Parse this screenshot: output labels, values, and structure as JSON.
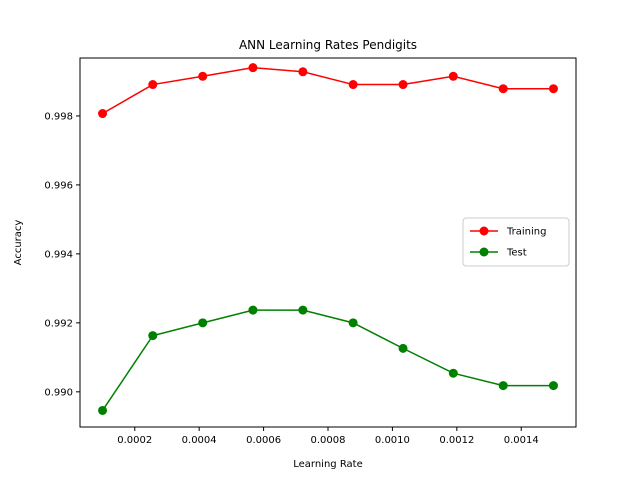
{
  "chart_data": {
    "type": "line",
    "title": "ANN Learning Rates Pendigits",
    "xlabel": "Learning Rate",
    "ylabel": "Accuracy",
    "x": [
      0.0001,
      0.000256,
      0.000411,
      0.000567,
      0.000722,
      0.000878,
      0.001033,
      0.001189,
      0.001344,
      0.0015
    ],
    "xlim": [
      3e-05,
      0.00157
    ],
    "ylim": [
      0.98898,
      0.99968
    ],
    "xticks": [
      {
        "value": 0.0002,
        "label": "0.0002"
      },
      {
        "value": 0.0004,
        "label": "0.0004"
      },
      {
        "value": 0.0006,
        "label": "0.0006"
      },
      {
        "value": 0.0008,
        "label": "0.0008"
      },
      {
        "value": 0.001,
        "label": "0.0010"
      },
      {
        "value": 0.0012,
        "label": "0.0012"
      },
      {
        "value": 0.0014,
        "label": "0.0014"
      }
    ],
    "yticks": [
      {
        "value": 0.99,
        "label": "0.990"
      },
      {
        "value": 0.992,
        "label": "0.992"
      },
      {
        "value": 0.994,
        "label": "0.994"
      },
      {
        "value": 0.996,
        "label": "0.996"
      },
      {
        "value": 0.998,
        "label": "0.998"
      }
    ],
    "grid": false,
    "legend_position": "center-right",
    "series": [
      {
        "name": "Training",
        "color": "#ff0000",
        "marker": "circle",
        "values": [
          0.99807,
          0.99891,
          0.99915,
          0.9994,
          0.99928,
          0.99891,
          0.99891,
          0.99915,
          0.99879,
          0.99879
        ]
      },
      {
        "name": "Test",
        "color": "#008000",
        "marker": "circle",
        "values": [
          0.98946,
          0.99163,
          0.992,
          0.99237,
          0.99237,
          0.992,
          0.99126,
          0.99054,
          0.99018,
          0.99018
        ]
      }
    ]
  }
}
